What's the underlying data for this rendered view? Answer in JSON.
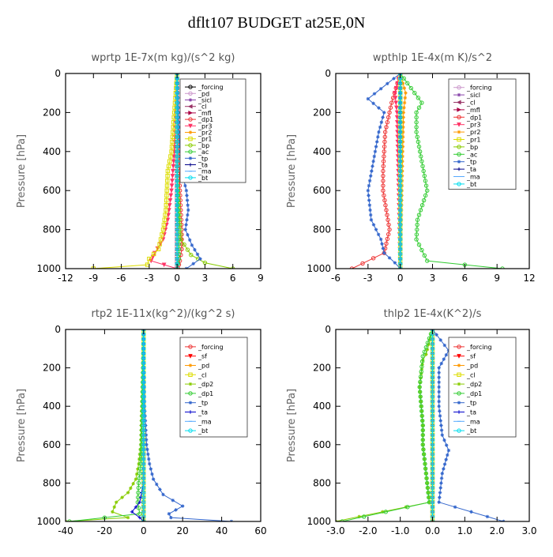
{
  "figure_title": "dflt107  BUDGET at25E,0N",
  "chart_data": [
    {
      "id": "wprtp",
      "type": "line",
      "title": "wprtp   1E-7x(m kg)/(s^2 kg)",
      "ylabel": "Pressure [hPa]",
      "xlim": [
        -12,
        9
      ],
      "ylim": [
        1000,
        0
      ],
      "xticks": [
        -12,
        -9,
        -6,
        -3,
        0,
        3,
        6,
        9
      ],
      "xtick_labels": [
        "-12",
        "-9",
        "-6",
        "-3",
        "0",
        "3",
        "6",
        "9"
      ],
      "yticks": [
        0,
        200,
        400,
        600,
        800,
        1000
      ],
      "ytick_labels": [
        "0",
        "200",
        "400",
        "600",
        "800",
        "1000"
      ],
      "legend_position": "top-right",
      "series": [
        {
          "name": "_forcing",
          "color": "#000000",
          "marker": "o",
          "x": [
            0,
            0
          ],
          "y": [
            0,
            1000
          ]
        },
        {
          "name": "_pd",
          "color": "#cc99cc",
          "marker": "o",
          "x": [
            0,
            0
          ],
          "y": [
            0,
            1000
          ]
        },
        {
          "name": "_sicl",
          "color": "#8844aa",
          "marker": "*",
          "x": [
            0,
            0
          ],
          "y": [
            0,
            1000
          ]
        },
        {
          "name": "_cl",
          "color": "#993366",
          "marker": "<",
          "x": [
            0,
            0
          ],
          "y": [
            0,
            1000
          ]
        },
        {
          "name": "_mfl",
          "color": "#aa0044",
          "marker": ">",
          "x": [
            0,
            0
          ],
          "y": [
            0,
            1000
          ]
        },
        {
          "name": "_dp1",
          "color": "#ee3333",
          "marker": "o",
          "x": [
            0,
            0.1,
            0.3,
            0.5,
            0.5,
            0.3,
            0.1
          ],
          "y": [
            0,
            300,
            600,
            800,
            900,
            960,
            1000
          ]
        },
        {
          "name": "_pr3",
          "color": "#ff3366",
          "marker": "v",
          "x": [
            0,
            -0.3,
            -0.6,
            -1,
            -1.5,
            -2.4,
            -2.8,
            0
          ],
          "y": [
            0,
            400,
            600,
            750,
            850,
            920,
            960,
            1000
          ]
        },
        {
          "name": "_pr2",
          "color": "#ff9900",
          "marker": "*",
          "x": [
            0,
            0,
            0,
            0
          ],
          "y": [
            0,
            400,
            800,
            1000
          ]
        },
        {
          "name": "_pr1",
          "color": "#dddd00",
          "marker": "s",
          "x": [
            0,
            -0.6,
            -1,
            -1.1,
            -1.2,
            -1.5,
            -2,
            -3,
            -3.2,
            -9
          ],
          "y": [
            0,
            400,
            500,
            600,
            700,
            800,
            900,
            950,
            980,
            1000
          ]
        },
        {
          "name": "_bp",
          "color": "#88cc00",
          "marker": "o",
          "x": [
            0,
            0,
            0.2,
            0.4,
            1.5,
            3,
            6
          ],
          "y": [
            0,
            500,
            700,
            850,
            930,
            970,
            1000
          ]
        },
        {
          "name": "_ac",
          "color": "#33cc33",
          "marker": "o",
          "x": [
            0,
            0,
            0.1,
            0.2,
            0.2,
            0
          ],
          "y": [
            0,
            500,
            700,
            850,
            950,
            1000
          ]
        },
        {
          "name": "_tp",
          "color": "#3366cc",
          "marker": "*",
          "x": [
            0,
            0.2,
            0.5,
            1,
            1.2,
            0.9,
            1.6,
            2.5,
            1
          ],
          "y": [
            0,
            300,
            500,
            600,
            700,
            800,
            880,
            950,
            1000
          ]
        },
        {
          "name": "_ta",
          "color": "#000088",
          "marker": "+",
          "x": [
            0,
            0,
            0,
            0
          ],
          "y": [
            0,
            400,
            800,
            1000
          ]
        },
        {
          "name": "_ma",
          "color": "#55aaff",
          "marker": "-",
          "x": [
            0,
            0
          ],
          "y": [
            0,
            1000
          ]
        },
        {
          "name": "_bt",
          "color": "#00ddee",
          "marker": "o",
          "x": [
            0,
            0
          ],
          "y": [
            0,
            1000
          ]
        }
      ]
    },
    {
      "id": "wpthlp",
      "type": "line",
      "title": "wpthlp   1E-4x(m K)/s^2",
      "ylabel": "Pressure [hPa]",
      "xlim": [
        -6,
        12
      ],
      "ylim": [
        1000,
        0
      ],
      "xticks": [
        -6,
        -3,
        0,
        3,
        6,
        9,
        12
      ],
      "xtick_labels": [
        "-6",
        "-3",
        "0",
        "3",
        "6",
        "9",
        "12"
      ],
      "yticks": [
        0,
        200,
        400,
        600,
        800,
        1000
      ],
      "ytick_labels": [
        "0",
        "200",
        "400",
        "600",
        "800",
        "1000"
      ],
      "legend_position": "top-right",
      "series": [
        {
          "name": "_forcing",
          "color": "#cc99cc",
          "marker": "o",
          "x": [
            0,
            0
          ],
          "y": [
            0,
            1000
          ]
        },
        {
          "name": "_sicl",
          "color": "#8844aa",
          "marker": "*",
          "x": [
            0,
            0
          ],
          "y": [
            0,
            1000
          ]
        },
        {
          "name": "_cl",
          "color": "#993366",
          "marker": "<",
          "x": [
            0,
            0
          ],
          "y": [
            0,
            1000
          ]
        },
        {
          "name": "_mfl",
          "color": "#aa0044",
          "marker": ">",
          "x": [
            0,
            0
          ],
          "y": [
            0,
            1000
          ]
        },
        {
          "name": "_dp1",
          "color": "#ee3333",
          "marker": "o",
          "x": [
            0,
            -0.8,
            -1.4,
            -1.6,
            -1.6,
            -1.3,
            -1,
            -1.5,
            -4.5
          ],
          "y": [
            0,
            150,
            300,
            500,
            600,
            700,
            800,
            920,
            1000
          ]
        },
        {
          "name": "_pr3",
          "color": "#ff3366",
          "marker": "v",
          "x": [
            0,
            -0.5,
            -0.3,
            0
          ],
          "y": [
            0,
            100,
            200,
            1000
          ]
        },
        {
          "name": "_pr2",
          "color": "#ff9900",
          "marker": "*",
          "x": [
            0,
            0.5,
            0.3,
            0
          ],
          "y": [
            0,
            100,
            200,
            1000
          ]
        },
        {
          "name": "_pr1",
          "color": "#dddd00",
          "marker": "s",
          "x": [
            0,
            0,
            0
          ],
          "y": [
            0,
            500,
            1000
          ]
        },
        {
          "name": "_bp",
          "color": "#88cc00",
          "marker": "o",
          "x": [
            0,
            0,
            0
          ],
          "y": [
            0,
            500,
            1000
          ]
        },
        {
          "name": "_ac",
          "color": "#33cc33",
          "marker": "o",
          "x": [
            0,
            2,
            1.5,
            1.5,
            2,
            2.5,
            1.6,
            1.5,
            2.5,
            9.5
          ],
          "y": [
            0,
            150,
            200,
            300,
            450,
            600,
            750,
            850,
            960,
            1000
          ]
        },
        {
          "name": "_tp",
          "color": "#3366cc",
          "marker": "*",
          "x": [
            0,
            -3,
            -1.5,
            -2,
            -2.5,
            -3,
            -2.7,
            -1.8,
            -1.5,
            -0.5,
            0
          ],
          "y": [
            0,
            130,
            200,
            300,
            450,
            600,
            750,
            850,
            920,
            970,
            1000
          ]
        },
        {
          "name": "_ta",
          "color": "#000088",
          "marker": "+",
          "x": [
            0,
            0,
            0
          ],
          "y": [
            0,
            500,
            1000
          ]
        },
        {
          "name": "_ma",
          "color": "#55aaff",
          "marker": "-",
          "x": [
            0,
            0
          ],
          "y": [
            0,
            1000
          ]
        },
        {
          "name": "_bt",
          "color": "#00ddee",
          "marker": "o",
          "x": [
            0,
            0
          ],
          "y": [
            0,
            1000
          ]
        }
      ]
    },
    {
      "id": "rtp2",
      "type": "line",
      "title": "rtp2   1E-11x(kg^2)/(kg^2 s)",
      "ylabel": "Pressure [hPa]",
      "xlim": [
        -40,
        60
      ],
      "ylim": [
        1000,
        0
      ],
      "xticks": [
        -40,
        -20,
        0,
        20,
        40,
        60
      ],
      "xtick_labels": [
        "-40",
        "-20",
        "0",
        "20",
        "40",
        "60"
      ],
      "yticks": [
        0,
        200,
        400,
        600,
        800,
        1000
      ],
      "ytick_labels": [
        "0",
        "200",
        "400",
        "600",
        "800",
        "1000"
      ],
      "legend_position": "top-right",
      "series": [
        {
          "name": "_forcing",
          "color": "#ee3333",
          "marker": "o",
          "x": [
            0,
            0
          ],
          "y": [
            0,
            1000
          ]
        },
        {
          "name": "_sf",
          "color": "#ff0000",
          "marker": "v",
          "x": [
            0,
            0
          ],
          "y": [
            0,
            1000
          ]
        },
        {
          "name": "_pd",
          "color": "#ff9900",
          "marker": "*",
          "x": [
            0,
            0
          ],
          "y": [
            0,
            1000
          ]
        },
        {
          "name": "_cl",
          "color": "#dddd00",
          "marker": "s",
          "x": [
            0,
            0
          ],
          "y": [
            0,
            1000
          ]
        },
        {
          "name": "_dp2",
          "color": "#88cc00",
          "marker": "*",
          "x": [
            0,
            -1,
            -1.5,
            -2.5,
            -4,
            -8,
            -14,
            -16,
            -8,
            -40
          ],
          "y": [
            0,
            400,
            600,
            700,
            780,
            850,
            900,
            950,
            980,
            1000
          ]
        },
        {
          "name": "_dp1",
          "color": "#33cc33",
          "marker": "o",
          "x": [
            0,
            -0.5,
            -1,
            -1.5,
            -2.5,
            -3,
            -2,
            -38
          ],
          "y": [
            0,
            400,
            600,
            700,
            800,
            900,
            960,
            1000
          ]
        },
        {
          "name": "_tp",
          "color": "#3366cc",
          "marker": "*",
          "x": [
            0,
            0.5,
            1.5,
            3,
            5,
            10,
            20,
            13,
            14,
            45
          ],
          "y": [
            0,
            400,
            600,
            700,
            780,
            860,
            920,
            960,
            980,
            1000
          ]
        },
        {
          "name": "_ta",
          "color": "#0000cc",
          "marker": "+",
          "x": [
            0,
            0,
            -2,
            -6,
            -2,
            0
          ],
          "y": [
            0,
            800,
            900,
            950,
            980,
            1000
          ]
        },
        {
          "name": "_ma",
          "color": "#55aaff",
          "marker": "-",
          "x": [
            0,
            0
          ],
          "y": [
            0,
            1000
          ]
        },
        {
          "name": "_bt",
          "color": "#00ddee",
          "marker": "o",
          "x": [
            0,
            0
          ],
          "y": [
            0,
            1000
          ]
        }
      ]
    },
    {
      "id": "thlp2",
      "type": "line",
      "title": "thlp2   1E-4x(K^2)/s",
      "ylabel": "Pressure [hPa]",
      "xlim": [
        -3,
        3
      ],
      "ylim": [
        1000,
        0
      ],
      "xticks": [
        -3,
        -2,
        -1,
        0,
        1,
        2,
        3
      ],
      "xtick_labels": [
        "-3.0",
        "-2.0",
        "-1.0",
        "0.0",
        "1.0",
        "2.0",
        "3.0"
      ],
      "yticks": [
        0,
        200,
        400,
        600,
        800,
        1000
      ],
      "ytick_labels": [
        "0",
        "200",
        "400",
        "600",
        "800",
        "1000"
      ],
      "legend_position": "top-right",
      "series": [
        {
          "name": "_forcing",
          "color": "#ee3333",
          "marker": "o",
          "x": [
            0,
            0
          ],
          "y": [
            0,
            1000
          ]
        },
        {
          "name": "_sf",
          "color": "#ff0000",
          "marker": "v",
          "x": [
            0,
            0
          ],
          "y": [
            0,
            1000
          ]
        },
        {
          "name": "_pd",
          "color": "#ff9900",
          "marker": "*",
          "x": [
            0,
            0
          ],
          "y": [
            0,
            1000
          ]
        },
        {
          "name": "_cl",
          "color": "#dddd00",
          "marker": "s",
          "x": [
            0,
            0
          ],
          "y": [
            0,
            1000
          ]
        },
        {
          "name": "_dp2",
          "color": "#88cc00",
          "marker": "*",
          "x": [
            0,
            -0.2,
            -0.3,
            -0.4,
            -0.3,
            -0.3,
            -0.2,
            -0.1,
            -3
          ],
          "y": [
            0,
            130,
            160,
            300,
            500,
            600,
            750,
            900,
            1000
          ]
        },
        {
          "name": "_dp1",
          "color": "#33cc33",
          "marker": "o",
          "x": [
            0,
            -0.3,
            -0.4,
            -0.3,
            -0.3,
            -0.2,
            -0.1,
            -2.8
          ],
          "y": [
            0,
            140,
            300,
            500,
            600,
            750,
            900,
            1000
          ]
        },
        {
          "name": "_tp",
          "color": "#3366cc",
          "marker": "*",
          "x": [
            0,
            0.5,
            0.2,
            0.2,
            0.3,
            0.5,
            0.3,
            0.2,
            2.2
          ],
          "y": [
            0,
            110,
            200,
            400,
            550,
            630,
            750,
            900,
            1000
          ]
        },
        {
          "name": "_ta",
          "color": "#0000cc",
          "marker": "+",
          "x": [
            0,
            0,
            0
          ],
          "y": [
            0,
            500,
            1000
          ]
        },
        {
          "name": "_ma",
          "color": "#55aaff",
          "marker": "-",
          "x": [
            0,
            0
          ],
          "y": [
            0,
            1000
          ]
        },
        {
          "name": "_bt",
          "color": "#00ddee",
          "marker": "o",
          "x": [
            0,
            0
          ],
          "y": [
            0,
            1000
          ]
        }
      ]
    }
  ]
}
